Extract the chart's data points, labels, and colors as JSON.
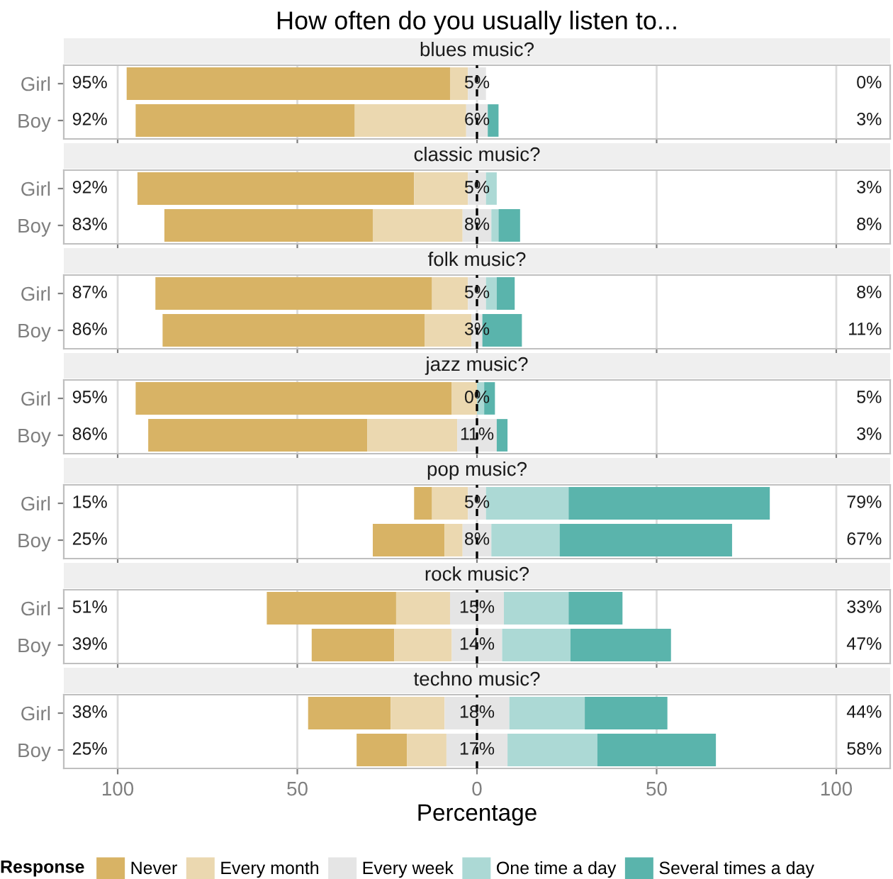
{
  "chart_data": [
    {
      "type": "bar",
      "orientation": "horizontal",
      "title": "How often do you usually listen to...",
      "subtitle": "blues music?",
      "categories": [
        "Girl",
        "Boy"
      ],
      "xlim": [
        -115,
        115
      ],
      "grid": "x",
      "tick_labels": "y",
      "ref_lines": [
        {
          "axis": "x",
          "value": 0,
          "color": "#000000",
          "line_style": "dashed"
        }
      ],
      "annotations": [
        "95%",
        "5%",
        "0%",
        "92%",
        "6%",
        "3%"
      ],
      "series": [
        {
          "color": "#d8b365",
          "base": [
            -97.5,
            -95
          ],
          "values": [
            90,
            61
          ]
        },
        {
          "color": "#ebd8b0",
          "base": [
            -7.5,
            -34
          ],
          "values": [
            5,
            31
          ]
        },
        {
          "color": "#e5e5e5",
          "base": [
            -2.5,
            -3
          ],
          "values": [
            5,
            6
          ]
        },
        {
          "color": "#acd9d5",
          "base": [
            null,
            null
          ],
          "values": [
            0,
            0
          ]
        },
        {
          "color": "#5ab4ac",
          "base": [
            null,
            3
          ],
          "values": [
            0,
            3
          ]
        }
      ]
    },
    {
      "type": "bar",
      "orientation": "horizontal",
      "subtitle": "classic music?",
      "categories": [
        "Girl",
        "Boy"
      ],
      "xlim": [
        -115,
        115
      ],
      "grid": "x",
      "tick_labels": "y",
      "ref_lines": [
        {
          "axis": "x",
          "value": 0,
          "color": "#000000",
          "line_style": "dashed"
        }
      ],
      "annotations": [
        "92%",
        "5%",
        "3%",
        "83%",
        "8%",
        "8%"
      ],
      "series": [
        {
          "color": "#d8b365",
          "base": [
            -94.5,
            -87
          ],
          "values": [
            77,
            58
          ]
        },
        {
          "color": "#ebd8b0",
          "base": [
            -17.5,
            -29
          ],
          "values": [
            15,
            25
          ]
        },
        {
          "color": "#e5e5e5",
          "base": [
            -2.5,
            -4
          ],
          "values": [
            5,
            8
          ]
        },
        {
          "color": "#acd9d5",
          "base": [
            2.5,
            4
          ],
          "values": [
            3,
            2
          ]
        },
        {
          "color": "#5ab4ac",
          "base": [
            null,
            6
          ],
          "values": [
            0,
            6
          ]
        }
      ]
    },
    {
      "type": "bar",
      "orientation": "horizontal",
      "subtitle": "folk music?",
      "categories": [
        "Girl",
        "Boy"
      ],
      "xlim": [
        -115,
        115
      ],
      "grid": "x",
      "tick_labels": "y",
      "ref_lines": [
        {
          "axis": "x",
          "value": 0,
          "color": "#000000",
          "line_style": "dashed"
        }
      ],
      "annotations": [
        "87%",
        "5%",
        "8%",
        "86%",
        "3%",
        "11%"
      ],
      "series": [
        {
          "color": "#d8b365",
          "base": [
            -89.5,
            -87.5
          ],
          "values": [
            77,
            73
          ]
        },
        {
          "color": "#ebd8b0",
          "base": [
            -12.5,
            -14.5
          ],
          "values": [
            10,
            13
          ]
        },
        {
          "color": "#e5e5e5",
          "base": [
            -2.5,
            -1.5
          ],
          "values": [
            5,
            3
          ]
        },
        {
          "color": "#acd9d5",
          "base": [
            2.5,
            null
          ],
          "values": [
            3,
            0
          ]
        },
        {
          "color": "#5ab4ac",
          "base": [
            5.5,
            1.5
          ],
          "values": [
            5,
            11
          ]
        }
      ]
    },
    {
      "type": "bar",
      "orientation": "horizontal",
      "subtitle": "jazz music?",
      "categories": [
        "Girl",
        "Boy"
      ],
      "xlim": [
        -115,
        115
      ],
      "grid": "x",
      "tick_labels": "y",
      "ref_lines": [
        {
          "axis": "x",
          "value": 0,
          "color": "#000000",
          "line_style": "dashed"
        }
      ],
      "annotations": [
        "95%",
        "0%",
        "5%",
        "86%",
        "11%",
        "3%"
      ],
      "series": [
        {
          "color": "#d8b365",
          "base": [
            -95,
            -91.5
          ],
          "values": [
            88,
            61
          ]
        },
        {
          "color": "#ebd8b0",
          "base": [
            -7,
            -30.5
          ],
          "values": [
            7,
            25
          ]
        },
        {
          "color": "#e5e5e5",
          "base": [
            null,
            -5.5
          ],
          "values": [
            0,
            11
          ]
        },
        {
          "color": "#acd9d5",
          "base": [
            0,
            null
          ],
          "values": [
            2,
            0
          ]
        },
        {
          "color": "#5ab4ac",
          "base": [
            2,
            5.5
          ],
          "values": [
            3,
            3
          ]
        }
      ]
    },
    {
      "type": "bar",
      "orientation": "horizontal",
      "subtitle": "pop music?",
      "categories": [
        "Girl",
        "Boy"
      ],
      "xlim": [
        -115,
        115
      ],
      "grid": "x",
      "tick_labels": "y",
      "ref_lines": [
        {
          "axis": "x",
          "value": 0,
          "color": "#000000",
          "line_style": "dashed"
        }
      ],
      "annotations": [
        "15%",
        "5%",
        "79%",
        "25%",
        "8%",
        "67%"
      ],
      "series": [
        {
          "color": "#d8b365",
          "base": [
            -17.5,
            -29
          ],
          "values": [
            5,
            20
          ]
        },
        {
          "color": "#ebd8b0",
          "base": [
            -12.5,
            -9
          ],
          "values": [
            10,
            5
          ]
        },
        {
          "color": "#e5e5e5",
          "base": [
            -2.5,
            -4
          ],
          "values": [
            5,
            8
          ]
        },
        {
          "color": "#acd9d5",
          "base": [
            2.5,
            4
          ],
          "values": [
            23,
            19
          ]
        },
        {
          "color": "#5ab4ac",
          "base": [
            25.5,
            23
          ],
          "values": [
            56,
            48
          ]
        }
      ]
    },
    {
      "type": "bar",
      "orientation": "horizontal",
      "subtitle": "rock music?",
      "categories": [
        "Girl",
        "Boy"
      ],
      "xlim": [
        -115,
        115
      ],
      "grid": "x",
      "tick_labels": "y",
      "ref_lines": [
        {
          "axis": "x",
          "value": 0,
          "color": "#000000",
          "line_style": "dashed"
        }
      ],
      "annotations": [
        "51%",
        "15%",
        "33%",
        "39%",
        "14%",
        "47%"
      ],
      "series": [
        {
          "color": "#d8b365",
          "base": [
            -58.5,
            -46
          ],
          "values": [
            36,
            23
          ]
        },
        {
          "color": "#ebd8b0",
          "base": [
            -22.5,
            -23
          ],
          "values": [
            15,
            16
          ]
        },
        {
          "color": "#e5e5e5",
          "base": [
            -7.5,
            -7
          ],
          "values": [
            15,
            14
          ]
        },
        {
          "color": "#acd9d5",
          "base": [
            7.5,
            7
          ],
          "values": [
            18,
            19
          ]
        },
        {
          "color": "#5ab4ac",
          "base": [
            25.5,
            26
          ],
          "values": [
            15,
            28
          ]
        }
      ]
    },
    {
      "type": "bar",
      "orientation": "horizontal",
      "subtitle": "techno music?",
      "xlabel": "Percentage",
      "legend": "bottom",
      "legend_title": "Response",
      "categories": [
        "Girl",
        "Boy"
      ],
      "xlim": [
        -115,
        115
      ],
      "xticks": [
        {
          "value": -100,
          "label": "100"
        },
        {
          "value": -50,
          "label": "50"
        },
        0,
        50,
        100
      ],
      "grid": "x",
      "ref_lines": [
        {
          "axis": "x",
          "value": 0,
          "color": "#000000",
          "line_style": "dashed"
        }
      ],
      "annotations": [
        "38%",
        "18%",
        "44%",
        "25%",
        "17%",
        "58%"
      ],
      "series": [
        {
          "name": "Never",
          "color": "#d8b365",
          "base": [
            -47,
            -33.5
          ],
          "values": [
            23,
            14
          ]
        },
        {
          "name": "Every month",
          "color": "#ebd8b0",
          "base": [
            -24,
            -19.5
          ],
          "values": [
            15,
            11
          ]
        },
        {
          "name": "Every week",
          "color": "#e5e5e5",
          "base": [
            -9,
            -8.5
          ],
          "values": [
            18,
            17
          ]
        },
        {
          "name": "One time a day",
          "color": "#acd9d5",
          "base": [
            9,
            8.5
          ],
          "values": [
            21,
            25
          ]
        },
        {
          "name": "Several times a day",
          "color": "#5ab4ac",
          "base": [
            30,
            33.5
          ],
          "values": [
            23,
            33
          ]
        }
      ]
    }
  ]
}
